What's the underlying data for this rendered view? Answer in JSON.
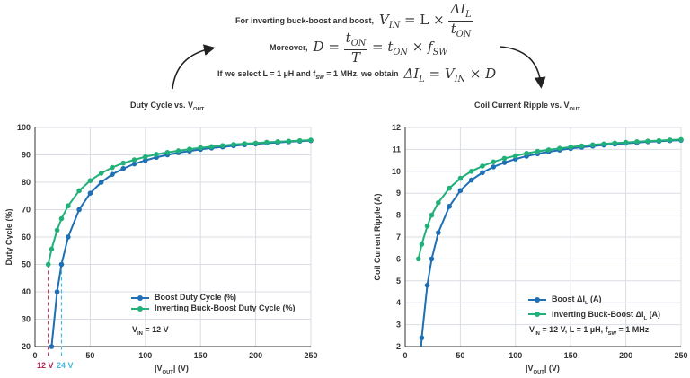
{
  "header": {
    "line1_text": "For inverting buck-boost and boost,",
    "line2_text": "Moreover,",
    "line3_text_parts": [
      "If we select L = 1 µH and f",
      "SW",
      " = 1 MHz, we obtain"
    ],
    "eq1": {
      "lhs": "V",
      "lhs_sub": "IN",
      "mid": " = L × ",
      "num": "ΔI",
      "num_sub": "L",
      "den": "t",
      "den_sub": "ON"
    },
    "eq2": {
      "lhs": "D = ",
      "num": "t",
      "num_sub": "ON",
      "den": "T",
      "rhs1": " = t",
      "rhs1_sub": "ON",
      "rhs2": " × f",
      "rhs2_sub": "SW"
    },
    "eq3": {
      "a": "ΔI",
      "a_sub": "L",
      "b": " = V",
      "b_sub": "IN",
      "c": " × D"
    }
  },
  "colors": {
    "boost": "#1f6fb5",
    "inverting": "#22b07a",
    "marker_12v": "#b0284f",
    "marker_24v": "#45b8e3",
    "grid": "#d9dde3"
  },
  "chart_data": [
    {
      "type": "line",
      "title_parts": [
        "Duty Cycle vs. V",
        "OUT"
      ],
      "xlabel_parts": [
        "|V",
        "OUT",
        "| (V)"
      ],
      "ylabel": "Duty Cycle (%)",
      "xlim": [
        0,
        250
      ],
      "ylim": [
        20,
        100
      ],
      "xticks": [
        0,
        50,
        100,
        150,
        200,
        250
      ],
      "yticks": [
        20,
        30,
        40,
        50,
        60,
        70,
        80,
        90,
        100
      ],
      "grid": true,
      "legend": "bottom-right",
      "annotation_parts": [
        "V",
        "IN",
        " = 12 V"
      ],
      "markers": [
        {
          "x": 12,
          "label": "12 V",
          "color_key": "marker_12v"
        },
        {
          "x": 24,
          "label": "24 V",
          "color_key": "marker_24v"
        }
      ],
      "series": [
        {
          "name": "Boost Duty Cycle (%)",
          "color_key": "boost",
          "x": [
            15,
            20,
            24,
            30,
            40,
            50,
            60,
            70,
            80,
            90,
            100,
            110,
            120,
            130,
            140,
            150,
            160,
            170,
            180,
            190,
            200,
            210,
            220,
            230,
            240,
            250
          ],
          "y": [
            20,
            40,
            50,
            60,
            70,
            76,
            80,
            82.9,
            85,
            86.7,
            88,
            89.1,
            90,
            90.8,
            91.4,
            92,
            92.5,
            92.9,
            93.3,
            93.7,
            94,
            94.3,
            94.5,
            94.8,
            95,
            95.2
          ]
        },
        {
          "name": "Inverting Buck-Boost Duty Cycle (%)",
          "color_key": "inverting",
          "x": [
            12,
            15,
            20,
            24,
            30,
            40,
            50,
            60,
            70,
            80,
            90,
            100,
            110,
            120,
            130,
            140,
            150,
            160,
            170,
            180,
            190,
            200,
            210,
            220,
            230,
            240,
            250
          ],
          "y": [
            50,
            55.6,
            62.5,
            66.7,
            71.4,
            76.9,
            80.6,
            83.3,
            85.4,
            87,
            88.2,
            89.3,
            90.2,
            90.9,
            91.5,
            92.1,
            92.6,
            93,
            93.4,
            93.8,
            94.1,
            94.3,
            94.6,
            94.8,
            95,
            95.2,
            95.4
          ]
        }
      ]
    },
    {
      "type": "line",
      "title_parts": [
        "Coil Current Ripple vs. V",
        "OUT"
      ],
      "xlabel_parts": [
        "|V",
        "OUT",
        "| (V)"
      ],
      "ylabel": "Coil Current Ripple (A)",
      "xlim": [
        0,
        250
      ],
      "ylim": [
        2,
        12
      ],
      "xticks": [
        0,
        50,
        100,
        150,
        200,
        250
      ],
      "yticks": [
        2,
        3,
        4,
        5,
        6,
        7,
        8,
        9,
        10,
        11,
        12
      ],
      "grid": true,
      "legend": "bottom-right",
      "annotation_parts": [
        "V",
        "IN",
        " = 12 V, L = 1 µH, f",
        "SW",
        " = 1 MHz"
      ],
      "series": [
        {
          "name_parts": [
            "Boost ΔI",
            "L",
            " (A)"
          ],
          "color_key": "boost",
          "x": [
            15,
            20,
            24,
            30,
            40,
            50,
            60,
            70,
            80,
            90,
            100,
            110,
            120,
            130,
            140,
            150,
            160,
            170,
            180,
            190,
            200,
            210,
            220,
            230,
            240,
            250
          ],
          "y": [
            2.4,
            4.8,
            6,
            7.2,
            8.4,
            9.12,
            9.6,
            9.94,
            10.2,
            10.4,
            10.56,
            10.69,
            10.8,
            10.89,
            10.97,
            11.04,
            11.1,
            11.15,
            11.2,
            11.24,
            11.28,
            11.31,
            11.35,
            11.37,
            11.4,
            11.42
          ]
        },
        {
          "name_parts": [
            "Inverting Buck-Boost ΔI",
            "L",
            " (A)"
          ],
          "color_key": "inverting",
          "x": [
            12,
            15,
            20,
            24,
            30,
            40,
            50,
            60,
            70,
            80,
            90,
            100,
            110,
            120,
            130,
            140,
            150,
            160,
            170,
            180,
            190,
            200,
            210,
            220,
            230,
            240,
            250
          ],
          "y": [
            6,
            6.67,
            7.5,
            8,
            8.57,
            9.23,
            9.68,
            10,
            10.24,
            10.43,
            10.59,
            10.71,
            10.82,
            10.91,
            10.98,
            11.05,
            11.11,
            11.16,
            11.21,
            11.25,
            11.29,
            11.32,
            11.35,
            11.38,
            11.4,
            11.43,
            11.45
          ]
        }
      ]
    }
  ]
}
